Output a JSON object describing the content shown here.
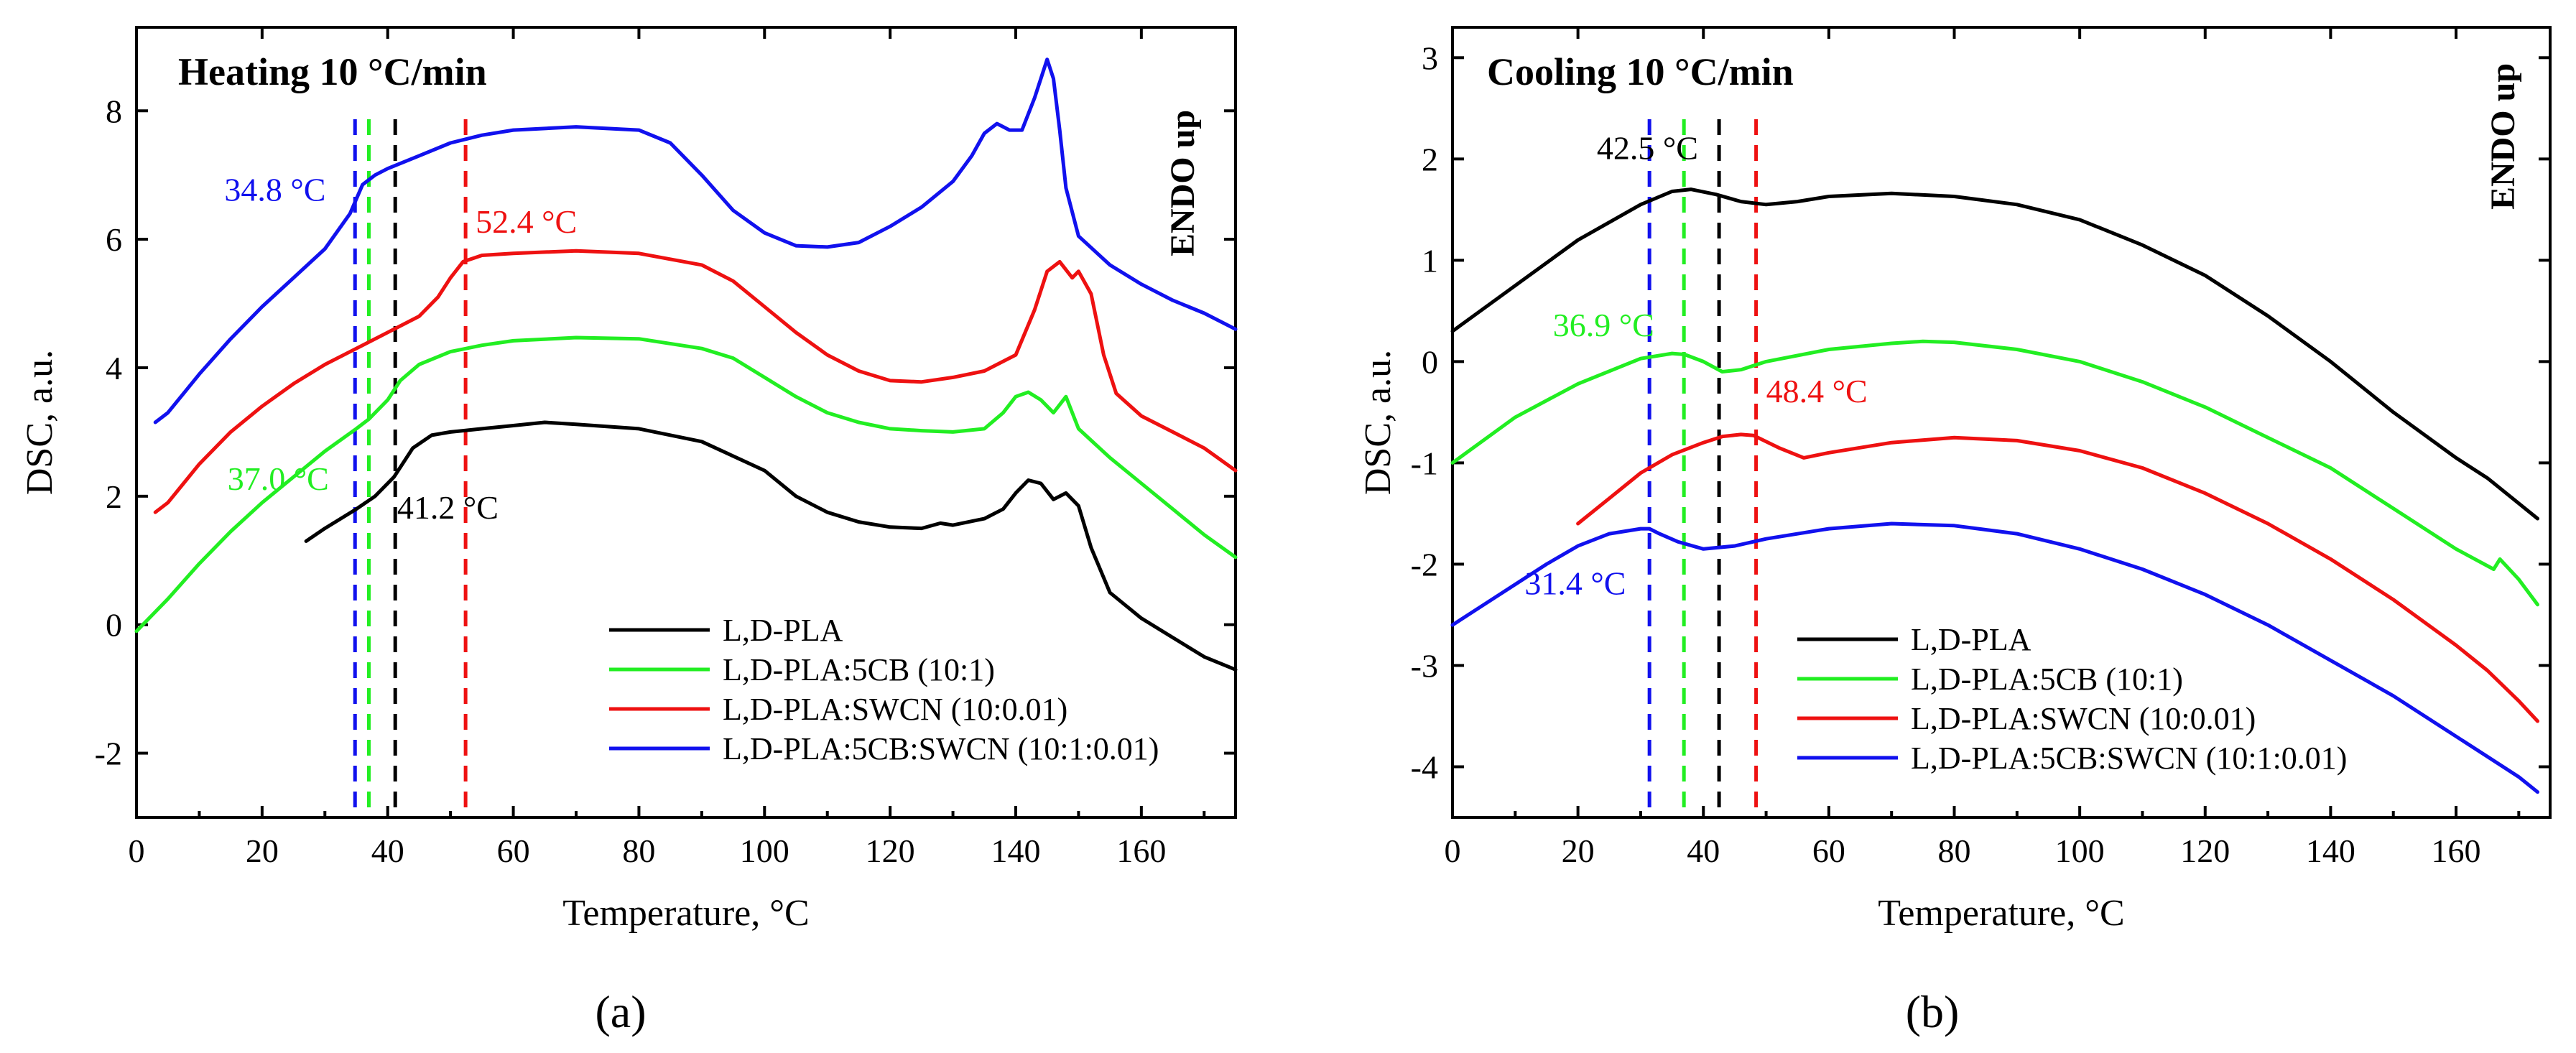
{
  "colors": {
    "black": "#000000",
    "green": "#22ee22",
    "red": "#ee1111",
    "blue": "#1111ee"
  },
  "chart_data": [
    {
      "type": "line",
      "panel": "a",
      "caption": "(a)",
      "title": "Heating 10 °C/min",
      "endo_label": "ENDO up",
      "xlabel": "Temperature, °C",
      "ylabel": "DSC, a.u.",
      "xlim": [
        0,
        175
      ],
      "ylim": [
        -3,
        9.3
      ],
      "xticks": [
        0,
        20,
        40,
        60,
        80,
        100,
        120,
        140,
        160
      ],
      "yticks": [
        -2,
        0,
        2,
        4,
        6,
        8
      ],
      "legend_position": "bottom-right",
      "series": [
        {
          "name": "L,D-PLA",
          "color": "#000000",
          "x": [
            27,
            30,
            35,
            38,
            41,
            44,
            47,
            50,
            55,
            60,
            65,
            70,
            80,
            90,
            100,
            105,
            110,
            115,
            120,
            125,
            128,
            130,
            135,
            138,
            140,
            142,
            144,
            146,
            148,
            150,
            152,
            155,
            160,
            165,
            170,
            175
          ],
          "y": [
            1.3,
            1.5,
            1.8,
            2.0,
            2.3,
            2.75,
            2.95,
            3.0,
            3.05,
            3.1,
            3.15,
            3.12,
            3.05,
            2.85,
            2.4,
            2.0,
            1.75,
            1.6,
            1.52,
            1.5,
            1.58,
            1.55,
            1.65,
            1.8,
            2.05,
            2.25,
            2.2,
            1.95,
            2.05,
            1.85,
            1.2,
            0.5,
            0.1,
            -0.2,
            -0.5,
            -0.7
          ]
        },
        {
          "name": "L,D-PLA:5CB (10:1)",
          "color": "#22ee22",
          "x": [
            0,
            5,
            10,
            15,
            20,
            25,
            30,
            35,
            37,
            40,
            42,
            45,
            50,
            55,
            60,
            70,
            80,
            90,
            95,
            100,
            105,
            110,
            115,
            120,
            125,
            130,
            135,
            138,
            140,
            142,
            144,
            146,
            148,
            150,
            155,
            160,
            165,
            170,
            175
          ],
          "y": [
            -0.1,
            0.4,
            0.95,
            1.45,
            1.9,
            2.3,
            2.7,
            3.05,
            3.2,
            3.5,
            3.8,
            4.05,
            4.25,
            4.35,
            4.42,
            4.47,
            4.45,
            4.3,
            4.15,
            3.85,
            3.55,
            3.3,
            3.15,
            3.05,
            3.02,
            3.0,
            3.05,
            3.3,
            3.55,
            3.62,
            3.5,
            3.3,
            3.55,
            3.05,
            2.6,
            2.2,
            1.8,
            1.4,
            1.05
          ]
        },
        {
          "name": "L,D-PLA:SWCN (10:0.01)",
          "color": "#ee1111",
          "x": [
            3,
            5,
            10,
            15,
            20,
            25,
            30,
            35,
            40,
            45,
            48,
            50,
            52,
            55,
            60,
            70,
            80,
            90,
            95,
            100,
            105,
            110,
            115,
            120,
            125,
            130,
            135,
            140,
            143,
            145,
            147,
            149,
            150,
            152,
            154,
            156,
            160,
            165,
            170,
            175
          ],
          "y": [
            1.75,
            1.9,
            2.5,
            3.0,
            3.4,
            3.75,
            4.05,
            4.3,
            4.55,
            4.8,
            5.1,
            5.4,
            5.65,
            5.75,
            5.78,
            5.82,
            5.78,
            5.6,
            5.35,
            4.95,
            4.55,
            4.2,
            3.95,
            3.8,
            3.78,
            3.85,
            3.95,
            4.2,
            4.9,
            5.5,
            5.65,
            5.4,
            5.5,
            5.15,
            4.2,
            3.6,
            3.25,
            3.0,
            2.75,
            2.4
          ]
        },
        {
          "name": "L,D-PLA:5CB:SWCN (10:1:0.01)",
          "color": "#1111ee",
          "x": [
            3,
            5,
            10,
            15,
            20,
            25,
            30,
            34,
            36,
            38,
            40,
            45,
            50,
            55,
            60,
            70,
            80,
            85,
            90,
            95,
            100,
            105,
            110,
            115,
            120,
            125,
            130,
            133,
            135,
            137,
            139,
            141,
            143,
            145,
            146,
            147,
            148,
            150,
            155,
            160,
            165,
            170,
            175
          ],
          "y": [
            3.15,
            3.3,
            3.9,
            4.45,
            4.95,
            5.4,
            5.85,
            6.4,
            6.85,
            7.0,
            7.1,
            7.3,
            7.5,
            7.62,
            7.7,
            7.75,
            7.7,
            7.5,
            7.0,
            6.45,
            6.1,
            5.9,
            5.88,
            5.95,
            6.2,
            6.5,
            6.9,
            7.3,
            7.65,
            7.8,
            7.7,
            7.7,
            8.2,
            8.8,
            8.5,
            7.7,
            6.8,
            6.05,
            5.6,
            5.3,
            5.05,
            4.85,
            4.6
          ]
        }
      ],
      "vlines": [
        {
          "x": 34.8,
          "color": "#1111ee"
        },
        {
          "x": 37.0,
          "color": "#22ee22"
        },
        {
          "x": 41.2,
          "color": "#000000"
        },
        {
          "x": 52.4,
          "color": "#ee1111"
        }
      ],
      "annotations": [
        {
          "text": "34.8 °C",
          "color": "#1111ee",
          "x": 14,
          "y": 6.6
        },
        {
          "text": "52.4 °C",
          "color": "#ee1111",
          "x": 54,
          "y": 6.1
        },
        {
          "text": "37.0 °C",
          "color": "#22ee22",
          "x": 14.5,
          "y": 2.1
        },
        {
          "text": "41.2 °C",
          "color": "#000000",
          "x": 41.5,
          "y": 1.65
        }
      ]
    },
    {
      "type": "line",
      "panel": "b",
      "caption": "(b)",
      "title": "Cooling 10 °C/min",
      "endo_label": "ENDO up",
      "xlabel": "Temperature, °C",
      "ylabel": "DSC, a.u.",
      "xlim": [
        0,
        175
      ],
      "ylim": [
        -4.5,
        3.3
      ],
      "xticks": [
        0,
        20,
        40,
        60,
        80,
        100,
        120,
        140,
        160
      ],
      "yticks": [
        -4,
        -3,
        -2,
        -1,
        0,
        1,
        2,
        3
      ],
      "legend_position": "bottom-right",
      "series": [
        {
          "name": "L,D-PLA",
          "color": "#000000",
          "x": [
            0,
            10,
            20,
            30,
            35,
            38,
            42,
            46,
            50,
            55,
            60,
            70,
            80,
            90,
            100,
            110,
            120,
            130,
            140,
            150,
            160,
            165,
            170,
            173
          ],
          "y": [
            0.3,
            0.75,
            1.2,
            1.55,
            1.68,
            1.7,
            1.65,
            1.58,
            1.55,
            1.58,
            1.63,
            1.66,
            1.63,
            1.55,
            1.4,
            1.15,
            0.85,
            0.45,
            0.0,
            -0.5,
            -0.95,
            -1.15,
            -1.4,
            -1.55
          ]
        },
        {
          "name": "L,D-PLA:5CB (10:1)",
          "color": "#22ee22",
          "x": [
            0,
            10,
            20,
            30,
            35,
            37,
            40,
            43,
            46,
            50,
            60,
            70,
            75,
            80,
            90,
            100,
            110,
            120,
            130,
            140,
            150,
            160,
            166,
            167,
            170,
            173
          ],
          "y": [
            -1.0,
            -0.55,
            -0.22,
            0.03,
            0.08,
            0.07,
            0.0,
            -0.1,
            -0.08,
            0.0,
            0.12,
            0.18,
            0.2,
            0.19,
            0.12,
            0.0,
            -0.2,
            -0.45,
            -0.75,
            -1.05,
            -1.45,
            -1.85,
            -2.05,
            -1.95,
            -2.15,
            -2.4
          ]
        },
        {
          "name": "L,D-PLA:SWCN (10:0.01)",
          "color": "#ee1111",
          "x": [
            20,
            25,
            30,
            35,
            40,
            43,
            46,
            48,
            52,
            56,
            60,
            70,
            80,
            90,
            100,
            110,
            120,
            130,
            140,
            150,
            160,
            165,
            170,
            173
          ],
          "y": [
            -1.6,
            -1.35,
            -1.1,
            -0.92,
            -0.8,
            -0.74,
            -0.72,
            -0.73,
            -0.85,
            -0.95,
            -0.9,
            -0.8,
            -0.75,
            -0.78,
            -0.88,
            -1.05,
            -1.3,
            -1.6,
            -1.95,
            -2.35,
            -2.8,
            -3.05,
            -3.35,
            -3.55
          ]
        },
        {
          "name": "L,D-PLA:5CB:SWCN (10:1:0.01)",
          "color": "#1111ee",
          "x": [
            0,
            5,
            10,
            15,
            20,
            25,
            30,
            31.4,
            33,
            36,
            40,
            45,
            50,
            60,
            70,
            80,
            90,
            100,
            110,
            120,
            130,
            140,
            150,
            160,
            165,
            170,
            173
          ],
          "y": [
            -2.6,
            -2.4,
            -2.2,
            -2.0,
            -1.82,
            -1.7,
            -1.65,
            -1.65,
            -1.7,
            -1.78,
            -1.85,
            -1.82,
            -1.75,
            -1.65,
            -1.6,
            -1.62,
            -1.7,
            -1.85,
            -2.05,
            -2.3,
            -2.6,
            -2.95,
            -3.3,
            -3.7,
            -3.9,
            -4.1,
            -4.25
          ]
        }
      ],
      "vlines": [
        {
          "x": 31.4,
          "color": "#1111ee"
        },
        {
          "x": 36.9,
          "color": "#22ee22"
        },
        {
          "x": 42.5,
          "color": "#000000"
        },
        {
          "x": 48.4,
          "color": "#ee1111"
        }
      ],
      "annotations": [
        {
          "text": "42.5 °C",
          "color": "#000000",
          "x": 23,
          "y": 2.0
        },
        {
          "text": "36.9 °C",
          "color": "#22ee22",
          "x": 16,
          "y": 0.25
        },
        {
          "text": "48.4 °C",
          "color": "#ee1111",
          "x": 50,
          "y": -0.4
        },
        {
          "text": "31.4 °C",
          "color": "#1111ee",
          "x": 11.5,
          "y": -2.3
        }
      ]
    }
  ]
}
